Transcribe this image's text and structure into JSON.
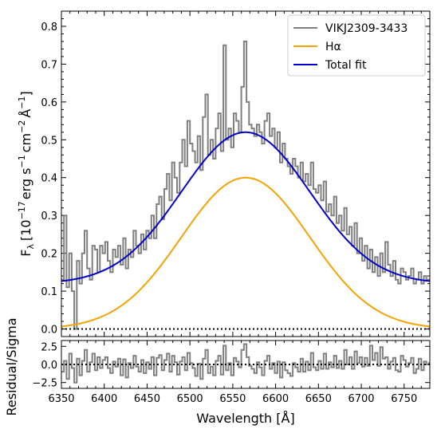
{
  "chart_data": [
    {
      "type": "line",
      "panel": "spectrum",
      "xlabel": "Wavelength [Å]",
      "ylabel": {
        "main": "F",
        "sub": "λ",
        "units": "[10",
        "exp1": "−17",
        "erg_s": "erg s",
        "exp2": "−1",
        "cm": "cm",
        "exp3": "−2",
        "A": "Å",
        "exp4": "−1",
        "close": "]"
      },
      "xlim": [
        6350,
        6780
      ],
      "ylim": [
        -0.02,
        0.84
      ],
      "xticks": [
        6350,
        6400,
        6450,
        6500,
        6550,
        6600,
        6650,
        6700,
        6750
      ],
      "yticks": [
        0.0,
        0.1,
        0.2,
        0.3,
        0.4,
        0.5,
        0.6,
        0.7,
        0.8
      ],
      "ytick_labels": [
        "0.0",
        "0.1",
        "0.2",
        "0.3",
        "0.4",
        "0.5",
        "0.6",
        "0.7",
        "0.8"
      ],
      "legend_position": "top-right",
      "legend": [
        "VIKJ2309-3433",
        "Hα",
        "Total fit"
      ],
      "colors": {
        "data": "#7f7f7f",
        "halpha": "#f5a300",
        "total": "#0000cc"
      },
      "series": [
        {
          "name": "VIKJ2309-3433",
          "style": "step",
          "x": [
            6350,
            6353,
            6356,
            6359,
            6362,
            6365,
            6368,
            6371,
            6374,
            6377,
            6380,
            6383,
            6386,
            6389,
            6392,
            6395,
            6398,
            6401,
            6404,
            6407,
            6410,
            6413,
            6416,
            6419,
            6422,
            6425,
            6428,
            6431,
            6434,
            6437,
            6440,
            6443,
            6446,
            6449,
            6452,
            6455,
            6458,
            6461,
            6464,
            6467,
            6470,
            6473,
            6476,
            6479,
            6482,
            6485,
            6488,
            6491,
            6494,
            6497,
            6500,
            6503,
            6506,
            6509,
            6512,
            6515,
            6518,
            6521,
            6524,
            6527,
            6530,
            6533,
            6536,
            6539,
            6542,
            6545,
            6548,
            6551,
            6554,
            6557,
            6560,
            6563,
            6566,
            6569,
            6572,
            6575,
            6578,
            6581,
            6584,
            6587,
            6590,
            6593,
            6596,
            6599,
            6602,
            6605,
            6608,
            6611,
            6614,
            6617,
            6620,
            6623,
            6626,
            6629,
            6632,
            6635,
            6638,
            6641,
            6644,
            6647,
            6650,
            6653,
            6656,
            6659,
            6662,
            6665,
            6668,
            6671,
            6674,
            6677,
            6680,
            6683,
            6686,
            6689,
            6692,
            6695,
            6698,
            6701,
            6704,
            6707,
            6710,
            6713,
            6716,
            6719,
            6722,
            6725,
            6728,
            6731,
            6734,
            6737,
            6740,
            6743,
            6746,
            6749,
            6752,
            6755,
            6758,
            6761,
            6764,
            6767,
            6770,
            6773,
            6776,
            6779
          ],
          "y": [
            0.13,
            0.3,
            0.11,
            0.2,
            0.1,
            0.0,
            0.18,
            0.12,
            0.2,
            0.26,
            0.16,
            0.13,
            0.22,
            0.21,
            0.15,
            0.22,
            0.2,
            0.23,
            0.18,
            0.15,
            0.21,
            0.19,
            0.22,
            0.17,
            0.24,
            0.16,
            0.21,
            0.19,
            0.26,
            0.22,
            0.2,
            0.25,
            0.21,
            0.26,
            0.24,
            0.3,
            0.24,
            0.33,
            0.35,
            0.29,
            0.37,
            0.41,
            0.34,
            0.44,
            0.4,
            0.36,
            0.44,
            0.5,
            0.43,
            0.55,
            0.49,
            0.47,
            0.44,
            0.51,
            0.42,
            0.56,
            0.62,
            0.46,
            0.5,
            0.45,
            0.53,
            0.57,
            0.47,
            0.75,
            0.5,
            0.53,
            0.48,
            0.57,
            0.55,
            0.52,
            0.64,
            0.76,
            0.6,
            0.54,
            0.53,
            0.51,
            0.54,
            0.52,
            0.49,
            0.55,
            0.57,
            0.51,
            0.53,
            0.48,
            0.52,
            0.44,
            0.49,
            0.45,
            0.43,
            0.41,
            0.45,
            0.43,
            0.4,
            0.44,
            0.39,
            0.41,
            0.38,
            0.44,
            0.37,
            0.36,
            0.38,
            0.34,
            0.39,
            0.31,
            0.33,
            0.3,
            0.35,
            0.28,
            0.3,
            0.26,
            0.32,
            0.25,
            0.27,
            0.22,
            0.28,
            0.2,
            0.24,
            0.18,
            0.22,
            0.16,
            0.21,
            0.15,
            0.19,
            0.14,
            0.2,
            0.15,
            0.23,
            0.17,
            0.14,
            0.18,
            0.13,
            0.12,
            0.16,
            0.15,
            0.13,
            0.14,
            0.16,
            0.12,
            0.13,
            0.15,
            0.12,
            0.14,
            0.13,
            0.13
          ]
        },
        {
          "name": "Hα",
          "style": "gaussian",
          "center": 6565,
          "amplitude": 0.4,
          "sigma": 75,
          "offset": 0.0
        },
        {
          "name": "Total fit",
          "style": "gaussian",
          "center": 6565,
          "amplitude": 0.4,
          "sigma": 75,
          "offset": 0.12
        }
      ],
      "zero_line": 0.0
    },
    {
      "type": "line",
      "panel": "residuals",
      "ylabel": "Residual/Sigma",
      "xlim": [
        6350,
        6780
      ],
      "ylim": [
        -3.3,
        3.3
      ],
      "yticks": [
        -2.5,
        0.0,
        2.5
      ],
      "ytick_labels": [
        "−2.5",
        "0.0",
        "2.5"
      ],
      "zero_line": 0.0,
      "series": [
        {
          "name": "",
          "style": "step",
          "y": [
            -1.0,
            0.5,
            -2.0,
            1.5,
            -0.5,
            -2.5,
            0.8,
            -1.5,
            0.5,
            2.0,
            -1.0,
            0.3,
            1.5,
            -0.8,
            1.0,
            -0.5,
            0.6,
            1.0,
            -0.5,
            -1.2,
            0.4,
            -0.3,
            0.8,
            -1.5,
            0.7,
            -1.8,
            0.2,
            -0.5,
            1.2,
            -0.3,
            -1.0,
            0.6,
            -1.2,
            0.3,
            -0.6,
            1.0,
            -1.5,
            0.9,
            1.3,
            -0.8,
            0.6,
            1.5,
            -1.0,
            1.2,
            0.3,
            -1.4,
            0.4,
            1.0,
            -0.8,
            1.6,
            0.2,
            -0.5,
            -1.6,
            0.1,
            -2.0,
            0.8,
            2.0,
            -1.2,
            -0.3,
            -1.5,
            0.5,
            1.2,
            -1.4,
            2.6,
            -0.8,
            0.2,
            -1.5,
            0.9,
            0.4,
            -0.4,
            2.0,
            2.8,
            1.0,
            -0.2,
            -0.6,
            -1.2,
            0.3,
            -0.4,
            -1.5,
            0.5,
            1.2,
            -0.6,
            0.2,
            -1.2,
            0.4,
            -1.8,
            0.3,
            -0.8,
            -1.2,
            -1.6,
            0.2,
            -0.4,
            -1.0,
            0.8,
            -1.0,
            0.4,
            -0.8,
            1.6,
            -0.4,
            -0.8,
            0.5,
            -0.6,
            1.5,
            -0.6,
            0.3,
            -0.4,
            1.2,
            -0.5,
            0.5,
            -0.6,
            2.0,
            0.0,
            1.0,
            -0.6,
            1.8,
            0.2,
            1.0,
            -0.3,
            0.9,
            -0.2,
            2.6,
            0.6,
            1.6,
            -0.2,
            2.4,
            0.8,
            1.0,
            -0.6,
            0.4,
            0.9,
            -0.8,
            -1.0,
            1.2,
            0.6,
            -0.3,
            0.2,
            0.9,
            -1.2,
            -0.6,
            0.8,
            -0.8,
            0.4,
            0.0,
            0.2
          ]
        }
      ]
    }
  ]
}
